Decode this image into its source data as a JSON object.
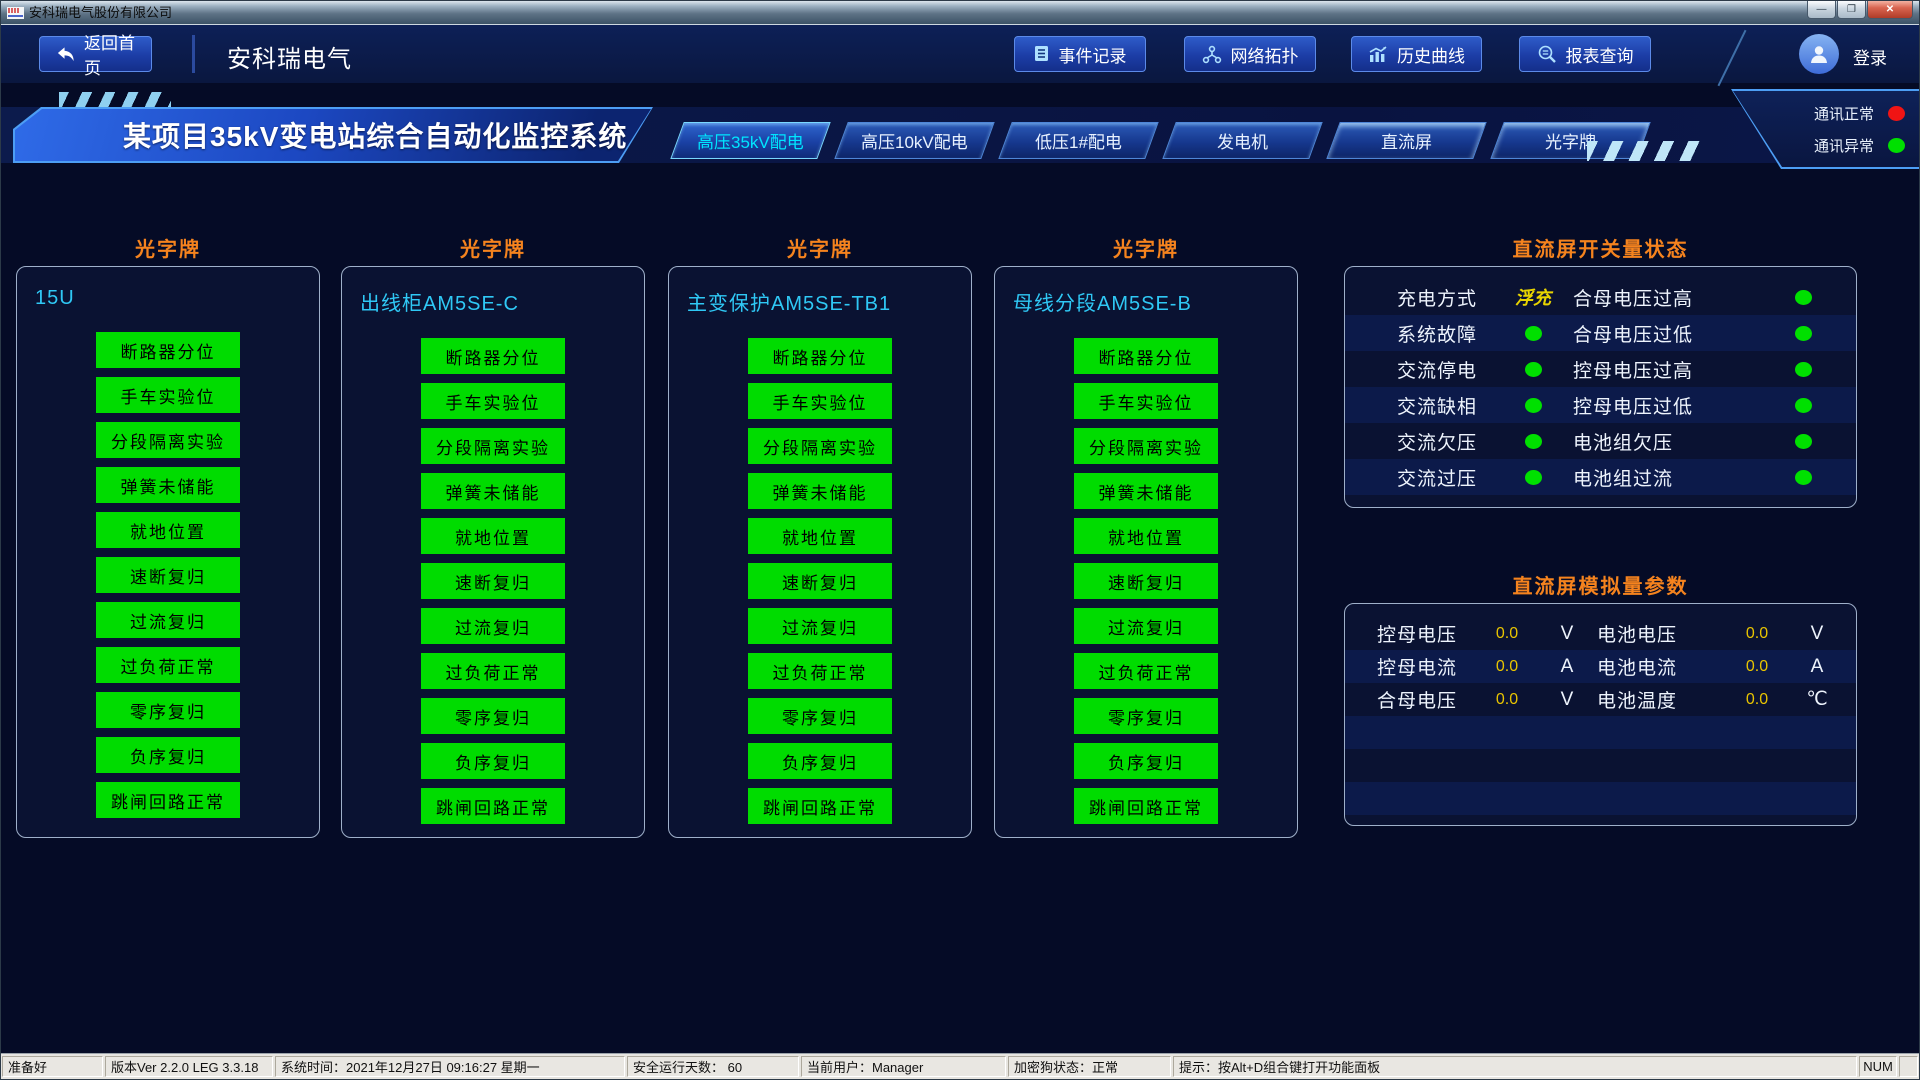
{
  "window": {
    "title": "安科瑞电气股份有限公司",
    "minimize_glyph": "—",
    "maximize_glyph": "❐",
    "close_glyph": "✕"
  },
  "topnav": {
    "back_label": "返回首页",
    "app_title": "安科瑞电气",
    "buttons": [
      {
        "label": "事件记录",
        "icon": "event-log-icon"
      },
      {
        "label": "网络拓扑",
        "icon": "network-topology-icon"
      },
      {
        "label": "历史曲线",
        "icon": "history-curve-icon"
      },
      {
        "label": "报表查询",
        "icon": "report-query-icon"
      }
    ],
    "login_label": "登录"
  },
  "banner": {
    "title": "某项目35kV变电站综合自动化监控系统"
  },
  "tabs": [
    {
      "label": "高压35kV配电",
      "active": true
    },
    {
      "label": "高压10kV配电",
      "active": false
    },
    {
      "label": "低压1#配电",
      "active": false
    },
    {
      "label": "发电机",
      "active": false
    },
    {
      "label": "直流屏",
      "active": false
    },
    {
      "label": "光字牌",
      "active": false
    }
  ],
  "comm_status": [
    {
      "label": "通讯正常",
      "color": "#f01414"
    },
    {
      "label": "通讯异常",
      "color": "#00e000"
    }
  ],
  "lamp_panels": {
    "section_title": "光字牌",
    "panels": [
      {
        "header": "15U"
      },
      {
        "header": "出线柜AM5SE-C"
      },
      {
        "header": "主变保护AM5SE-TB1"
      },
      {
        "header": "母线分段AM5SE-B"
      }
    ],
    "lamps": [
      "断路器分位",
      "手车实验位",
      "分段隔离实验",
      "弹簧未储能",
      "就地位置",
      "速断复归",
      "过流复归",
      "过负荷正常",
      "零序复归",
      "负序复归",
      "跳闸回路正常"
    ],
    "lamp_color": "#00dc00"
  },
  "dc_switch_panel": {
    "title": "直流屏开关量状态",
    "dot_color": "#00e000",
    "rows": [
      {
        "left": "充电方式",
        "left_value": "浮充",
        "right": "合母电压过高"
      },
      {
        "left": "系统故障",
        "right": "合母电压过低"
      },
      {
        "left": "交流停电",
        "right": "控母电压过高"
      },
      {
        "left": "交流缺相",
        "right": "控母电压过低"
      },
      {
        "left": "交流欠压",
        "right": "电池组欠压"
      },
      {
        "left": "交流过压",
        "right": "电池组过流"
      }
    ]
  },
  "dc_analog_panel": {
    "title": "直流屏模拟量参数",
    "rows": [
      {
        "l_label": "控母电压",
        "l_value": "0.0",
        "l_unit": "V",
        "r_label": "电池电压",
        "r_value": "0.0",
        "r_unit": "V"
      },
      {
        "l_label": "控母电流",
        "l_value": "0.0",
        "l_unit": "A",
        "r_label": "电池电流",
        "r_value": "0.0",
        "r_unit": "A"
      },
      {
        "l_label": "合母电压",
        "l_value": "0.0",
        "l_unit": "V",
        "r_label": "电池温度",
        "r_value": "0.0",
        "r_unit": "℃"
      }
    ]
  },
  "statusbar": {
    "segments": [
      "准备好",
      "版本Ver 2.2.0 LEG 3.3.18",
      "系统时间：2021年12月27日  09:16:27   星期一",
      "安全运行天数：  60",
      "当前用户：Manager",
      "加密狗状态：正常",
      "提示：按Alt+D组合键打开功能面板",
      "NUM"
    ]
  },
  "colors": {
    "accent_orange": "#f5831e",
    "header_cyan": "#2fc8f5",
    "active_tab_cyan": "#00e5ff",
    "value_gold": "#e8c400",
    "lamp_green": "#00dc00",
    "status_green": "#00e000",
    "status_red": "#f01414"
  }
}
